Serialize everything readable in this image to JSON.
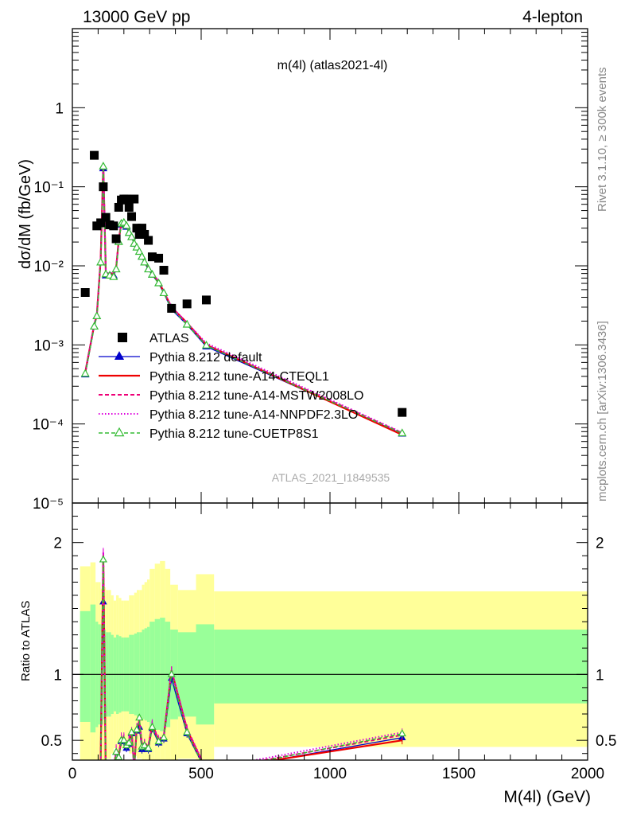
{
  "header": {
    "energy_label": "13000 GeV pp",
    "process_label": "4-lepton"
  },
  "side_labels": {
    "rivet": "Rivet 3.1.10, ≥ 300k events",
    "mcplots": "mcplots.cern.ch [arXiv:1306.3436]"
  },
  "chart_data": {
    "type": "line",
    "title": "m(4l) (atlas2021-4l)",
    "watermark": "ATLAS_2021_I1849535",
    "xlabel": "M(4l) (GeV)",
    "ylabel": "dσ/dM (fb/GeV)",
    "ratio_ylabel": "Ratio to ATLAS",
    "xlim": [
      0,
      2000
    ],
    "ylim": [
      1e-05,
      10
    ],
    "yscale": "log",
    "ratio_ylim": [
      0.35,
      2.3
    ],
    "xticks": [
      "0",
      "500",
      "1000",
      "1500",
      "2000"
    ],
    "yticks_main": [
      "10⁻⁵",
      "10⁻⁴",
      "10⁻³",
      "10⁻²",
      "10⁻¹",
      "1"
    ],
    "yticks_ratio": [
      "0.5",
      "1",
      "2"
    ],
    "legend_position": "bottom-left",
    "colors": {
      "data": "#000000",
      "default": "#0000cc",
      "cteql1": "#ee0000",
      "mstw": "#ee0077",
      "nnpdf": "#dd00dd",
      "cuetp8s1": "#33bb33",
      "band_inner": "#99ff99",
      "band_outer": "#ffff99"
    },
    "data_points": {
      "name": "ATLAS",
      "x": [
        50,
        85,
        95,
        110,
        120,
        130,
        145,
        160,
        170,
        180,
        190,
        200,
        210,
        220,
        230,
        240,
        250,
        260,
        270,
        280,
        295,
        310,
        335,
        355,
        385,
        445,
        520,
        1280
      ],
      "y": [
        0.0046,
        0.25,
        0.032,
        0.035,
        0.1,
        0.041,
        0.033,
        0.032,
        0.022,
        0.055,
        0.068,
        0.07,
        0.07,
        0.055,
        0.042,
        0.07,
        0.03,
        0.025,
        0.03,
        0.025,
        0.021,
        0.013,
        0.0125,
        0.0088,
        0.0029,
        0.0033,
        0.0037,
        0.00014
      ]
    },
    "series": [
      {
        "name": "Pythia 8.212 default",
        "key": "default",
        "x": [
          50,
          85,
          95,
          110,
          120,
          130,
          145,
          160,
          170,
          180,
          190,
          200,
          210,
          220,
          230,
          240,
          250,
          260,
          270,
          280,
          295,
          310,
          335,
          355,
          385,
          445,
          520,
          1280
        ],
        "y": [
          0.00042,
          0.0017,
          0.0023,
          0.011,
          0.17,
          0.0075,
          0.0075,
          0.0075,
          0.009,
          0.02,
          0.033,
          0.034,
          0.031,
          0.026,
          0.023,
          0.019,
          0.017,
          0.015,
          0.013,
          0.011,
          0.009,
          0.0077,
          0.006,
          0.0045,
          0.0028,
          0.0018,
          0.00095,
          7.5e-05
        ],
        "ratio": [
          0.09,
          0.007,
          0.07,
          0.31,
          1.55,
          0.18,
          0.23,
          0.23,
          0.41,
          0.36,
          0.49,
          0.49,
          0.44,
          0.47,
          0.55,
          0.27,
          0.57,
          0.6,
          0.43,
          0.44,
          0.43,
          0.59,
          0.48,
          0.51,
          0.97,
          0.55,
          0.26,
          0.52
        ]
      },
      {
        "name": "Pythia 8.212 tune-A14-CTEQL1",
        "key": "cteql1",
        "x": [
          50,
          85,
          95,
          110,
          120,
          130,
          145,
          160,
          170,
          180,
          190,
          200,
          210,
          220,
          230,
          240,
          250,
          260,
          270,
          280,
          295,
          310,
          335,
          355,
          385,
          445,
          520,
          1280
        ],
        "y": [
          0.00045,
          0.0018,
          0.0024,
          0.012,
          0.19,
          0.008,
          0.008,
          0.008,
          0.0095,
          0.021,
          0.035,
          0.036,
          0.033,
          0.027,
          0.024,
          0.02,
          0.018,
          0.016,
          0.014,
          0.012,
          0.0095,
          0.008,
          0.0063,
          0.0047,
          0.003,
          0.0019,
          0.001,
          7.3e-05
        ],
        "ratio": [
          0.1,
          0.007,
          0.075,
          0.34,
          1.9,
          0.2,
          0.24,
          0.25,
          0.43,
          0.38,
          0.51,
          0.51,
          0.47,
          0.49,
          0.57,
          0.29,
          0.6,
          0.64,
          0.47,
          0.48,
          0.45,
          0.62,
          0.5,
          0.53,
          1.03,
          0.58,
          0.27,
          0.5
        ]
      },
      {
        "name": "Pythia 8.212 tune-A14-MSTW2008LO",
        "key": "mstw",
        "x": [
          50,
          85,
          95,
          110,
          120,
          130,
          145,
          160,
          170,
          180,
          190,
          200,
          210,
          220,
          230,
          240,
          250,
          260,
          270,
          280,
          295,
          310,
          335,
          355,
          385,
          445,
          520,
          1280
        ],
        "y": [
          0.00044,
          0.0018,
          0.0024,
          0.012,
          0.19,
          0.008,
          0.008,
          0.008,
          0.0094,
          0.021,
          0.035,
          0.036,
          0.033,
          0.027,
          0.024,
          0.02,
          0.018,
          0.016,
          0.014,
          0.012,
          0.0095,
          0.008,
          0.0063,
          0.0047,
          0.003,
          0.0019,
          0.001,
          7.7e-05
        ],
        "ratio": [
          0.1,
          0.007,
          0.075,
          0.34,
          1.92,
          0.2,
          0.24,
          0.25,
          0.43,
          0.38,
          0.52,
          0.52,
          0.47,
          0.5,
          0.57,
          0.29,
          0.6,
          0.65,
          0.47,
          0.48,
          0.45,
          0.62,
          0.5,
          0.53,
          1.03,
          0.59,
          0.27,
          0.54
        ]
      },
      {
        "name": "Pythia 8.212 tune-A14-NNPDF2.3LO",
        "key": "nnpdf",
        "x": [
          50,
          85,
          95,
          110,
          120,
          130,
          145,
          160,
          170,
          180,
          190,
          200,
          210,
          220,
          230,
          240,
          250,
          260,
          270,
          280,
          295,
          310,
          335,
          355,
          385,
          445,
          520,
          1280
        ],
        "y": [
          0.00046,
          0.0018,
          0.0025,
          0.012,
          0.19,
          0.008,
          0.0082,
          0.008,
          0.0096,
          0.021,
          0.036,
          0.037,
          0.033,
          0.028,
          0.024,
          0.02,
          0.018,
          0.016,
          0.014,
          0.012,
          0.0097,
          0.0082,
          0.0064,
          0.0048,
          0.003,
          0.0019,
          0.00105,
          7.8e-05
        ],
        "ratio": [
          0.1,
          0.007,
          0.078,
          0.34,
          1.93,
          0.2,
          0.25,
          0.25,
          0.44,
          0.38,
          0.53,
          0.53,
          0.47,
          0.51,
          0.57,
          0.29,
          0.6,
          0.65,
          0.47,
          0.48,
          0.46,
          0.63,
          0.51,
          0.54,
          1.03,
          0.59,
          0.28,
          0.56
        ]
      },
      {
        "name": "Pythia 8.212 tune-CUETP8S1",
        "key": "cuetp8s1",
        "x": [
          50,
          85,
          95,
          110,
          120,
          130,
          145,
          160,
          170,
          180,
          190,
          200,
          210,
          220,
          230,
          240,
          250,
          260,
          270,
          280,
          295,
          310,
          335,
          355,
          385,
          445,
          520,
          1280
        ],
        "y": [
          0.00043,
          0.0017,
          0.0023,
          0.011,
          0.18,
          0.0078,
          0.0075,
          0.0072,
          0.009,
          0.02,
          0.034,
          0.035,
          0.032,
          0.026,
          0.023,
          0.019,
          0.017,
          0.015,
          0.013,
          0.011,
          0.009,
          0.0077,
          0.006,
          0.0045,
          0.0029,
          0.0018,
          0.00098,
          7.6e-05
        ],
        "ratio": [
          0.09,
          0.007,
          0.072,
          0.32,
          1.87,
          0.19,
          0.23,
          0.22,
          0.41,
          0.37,
          0.5,
          0.5,
          0.46,
          0.48,
          0.56,
          0.28,
          0.58,
          0.67,
          0.45,
          0.46,
          0.44,
          0.6,
          0.49,
          0.52,
          1.0,
          0.56,
          0.26,
          0.55
        ]
      }
    ],
    "uncertainty_band": {
      "edges": [
        30,
        70,
        90,
        100,
        110,
        120,
        130,
        140,
        150,
        160,
        170,
        180,
        190,
        200,
        210,
        220,
        230,
        240,
        250,
        260,
        270,
        280,
        290,
        300,
        320,
        340,
        360,
        380,
        410,
        480,
        550,
        2000
      ],
      "inner_low": [
        0.64,
        0.56,
        0.6,
        0.62,
        0.62,
        0.66,
        0.68,
        0.68,
        0.7,
        0.72,
        0.7,
        0.71,
        0.72,
        0.72,
        0.72,
        0.7,
        0.7,
        0.69,
        0.68,
        0.68,
        0.66,
        0.65,
        0.64,
        0.6,
        0.58,
        0.57,
        0.6,
        0.66,
        0.68,
        0.62,
        0.78
      ],
      "inner_high": [
        1.48,
        1.53,
        1.4,
        1.38,
        1.38,
        1.34,
        1.32,
        1.32,
        1.3,
        1.28,
        1.3,
        1.29,
        1.28,
        1.28,
        1.28,
        1.3,
        1.3,
        1.31,
        1.32,
        1.32,
        1.34,
        1.35,
        1.36,
        1.4,
        1.42,
        1.43,
        1.4,
        1.34,
        1.32,
        1.38,
        1.34
      ],
      "outer_low": [
        0.3,
        0.32,
        0.3,
        0.3,
        0.3,
        0.34,
        0.36,
        0.36,
        0.4,
        0.44,
        0.4,
        0.42,
        0.44,
        0.44,
        0.44,
        0.4,
        0.4,
        0.38,
        0.36,
        0.36,
        0.32,
        0.3,
        0.28,
        0.2,
        0.16,
        0.14,
        0.2,
        0.32,
        0.36,
        0.24,
        0.45
      ],
      "outer_high": [
        1.82,
        1.85,
        1.7,
        1.7,
        1.65,
        1.66,
        1.64,
        1.64,
        1.6,
        1.56,
        1.6,
        1.58,
        1.56,
        1.56,
        1.56,
        1.6,
        1.6,
        1.62,
        1.64,
        1.64,
        1.68,
        1.7,
        1.72,
        1.8,
        1.84,
        1.86,
        1.8,
        1.68,
        1.64,
        1.76,
        1.63
      ]
    }
  }
}
